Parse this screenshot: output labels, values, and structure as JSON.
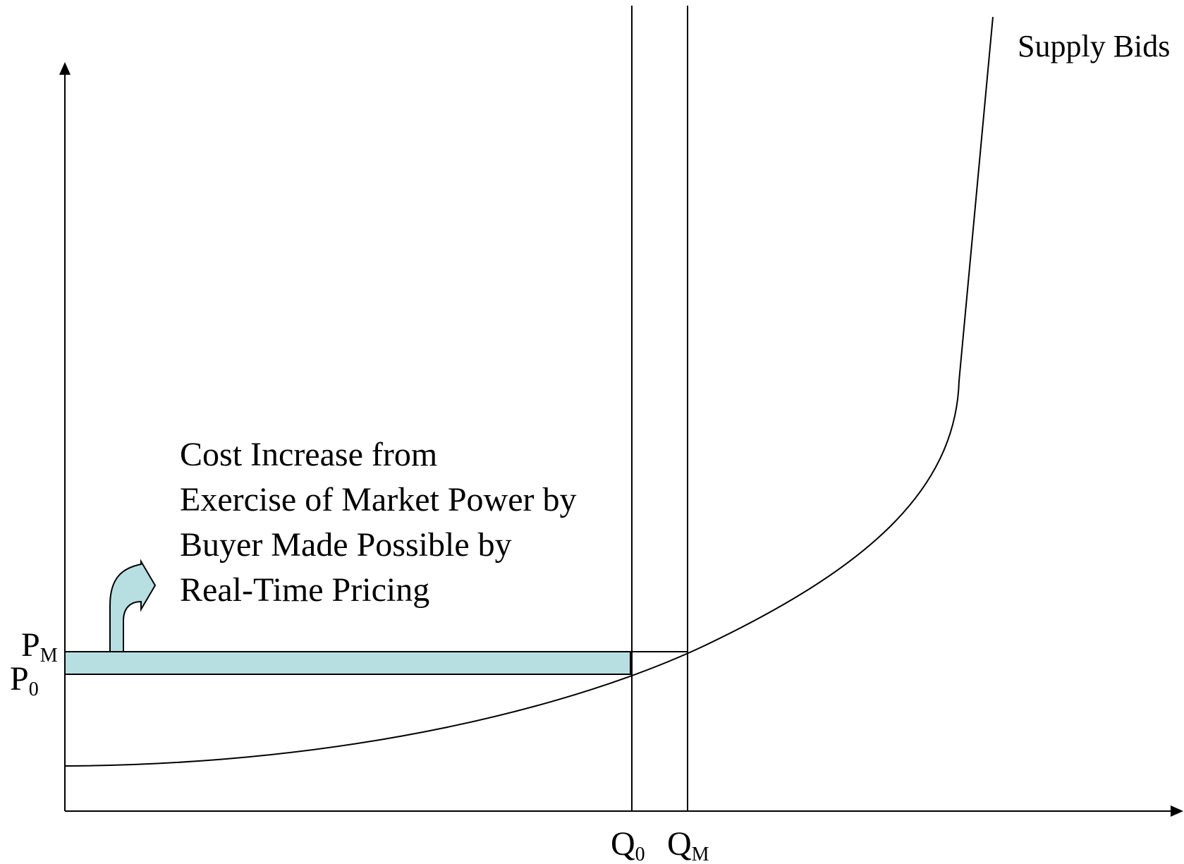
{
  "axes": {
    "y_tick_upper": {
      "main": "P",
      "sub": "M"
    },
    "y_tick_lower": {
      "main": "P",
      "sub": "0"
    },
    "x_tick_left": {
      "main": "Q",
      "sub": "0"
    },
    "x_tick_right": {
      "main": "Q",
      "sub": "M"
    }
  },
  "curve_label": "Supply Bids",
  "annotation_lines": [
    "Cost Increase from",
    "Exercise of Market Power by",
    "Buyer Made Possible by",
    "Real-Time Pricing"
  ],
  "colors": {
    "shaded_area": "#b7dfe2",
    "line": "#000000",
    "arrow_fill": "#b7dfe2"
  },
  "icons": {
    "annotation_arrow": "curved-up-right-arrow"
  }
}
